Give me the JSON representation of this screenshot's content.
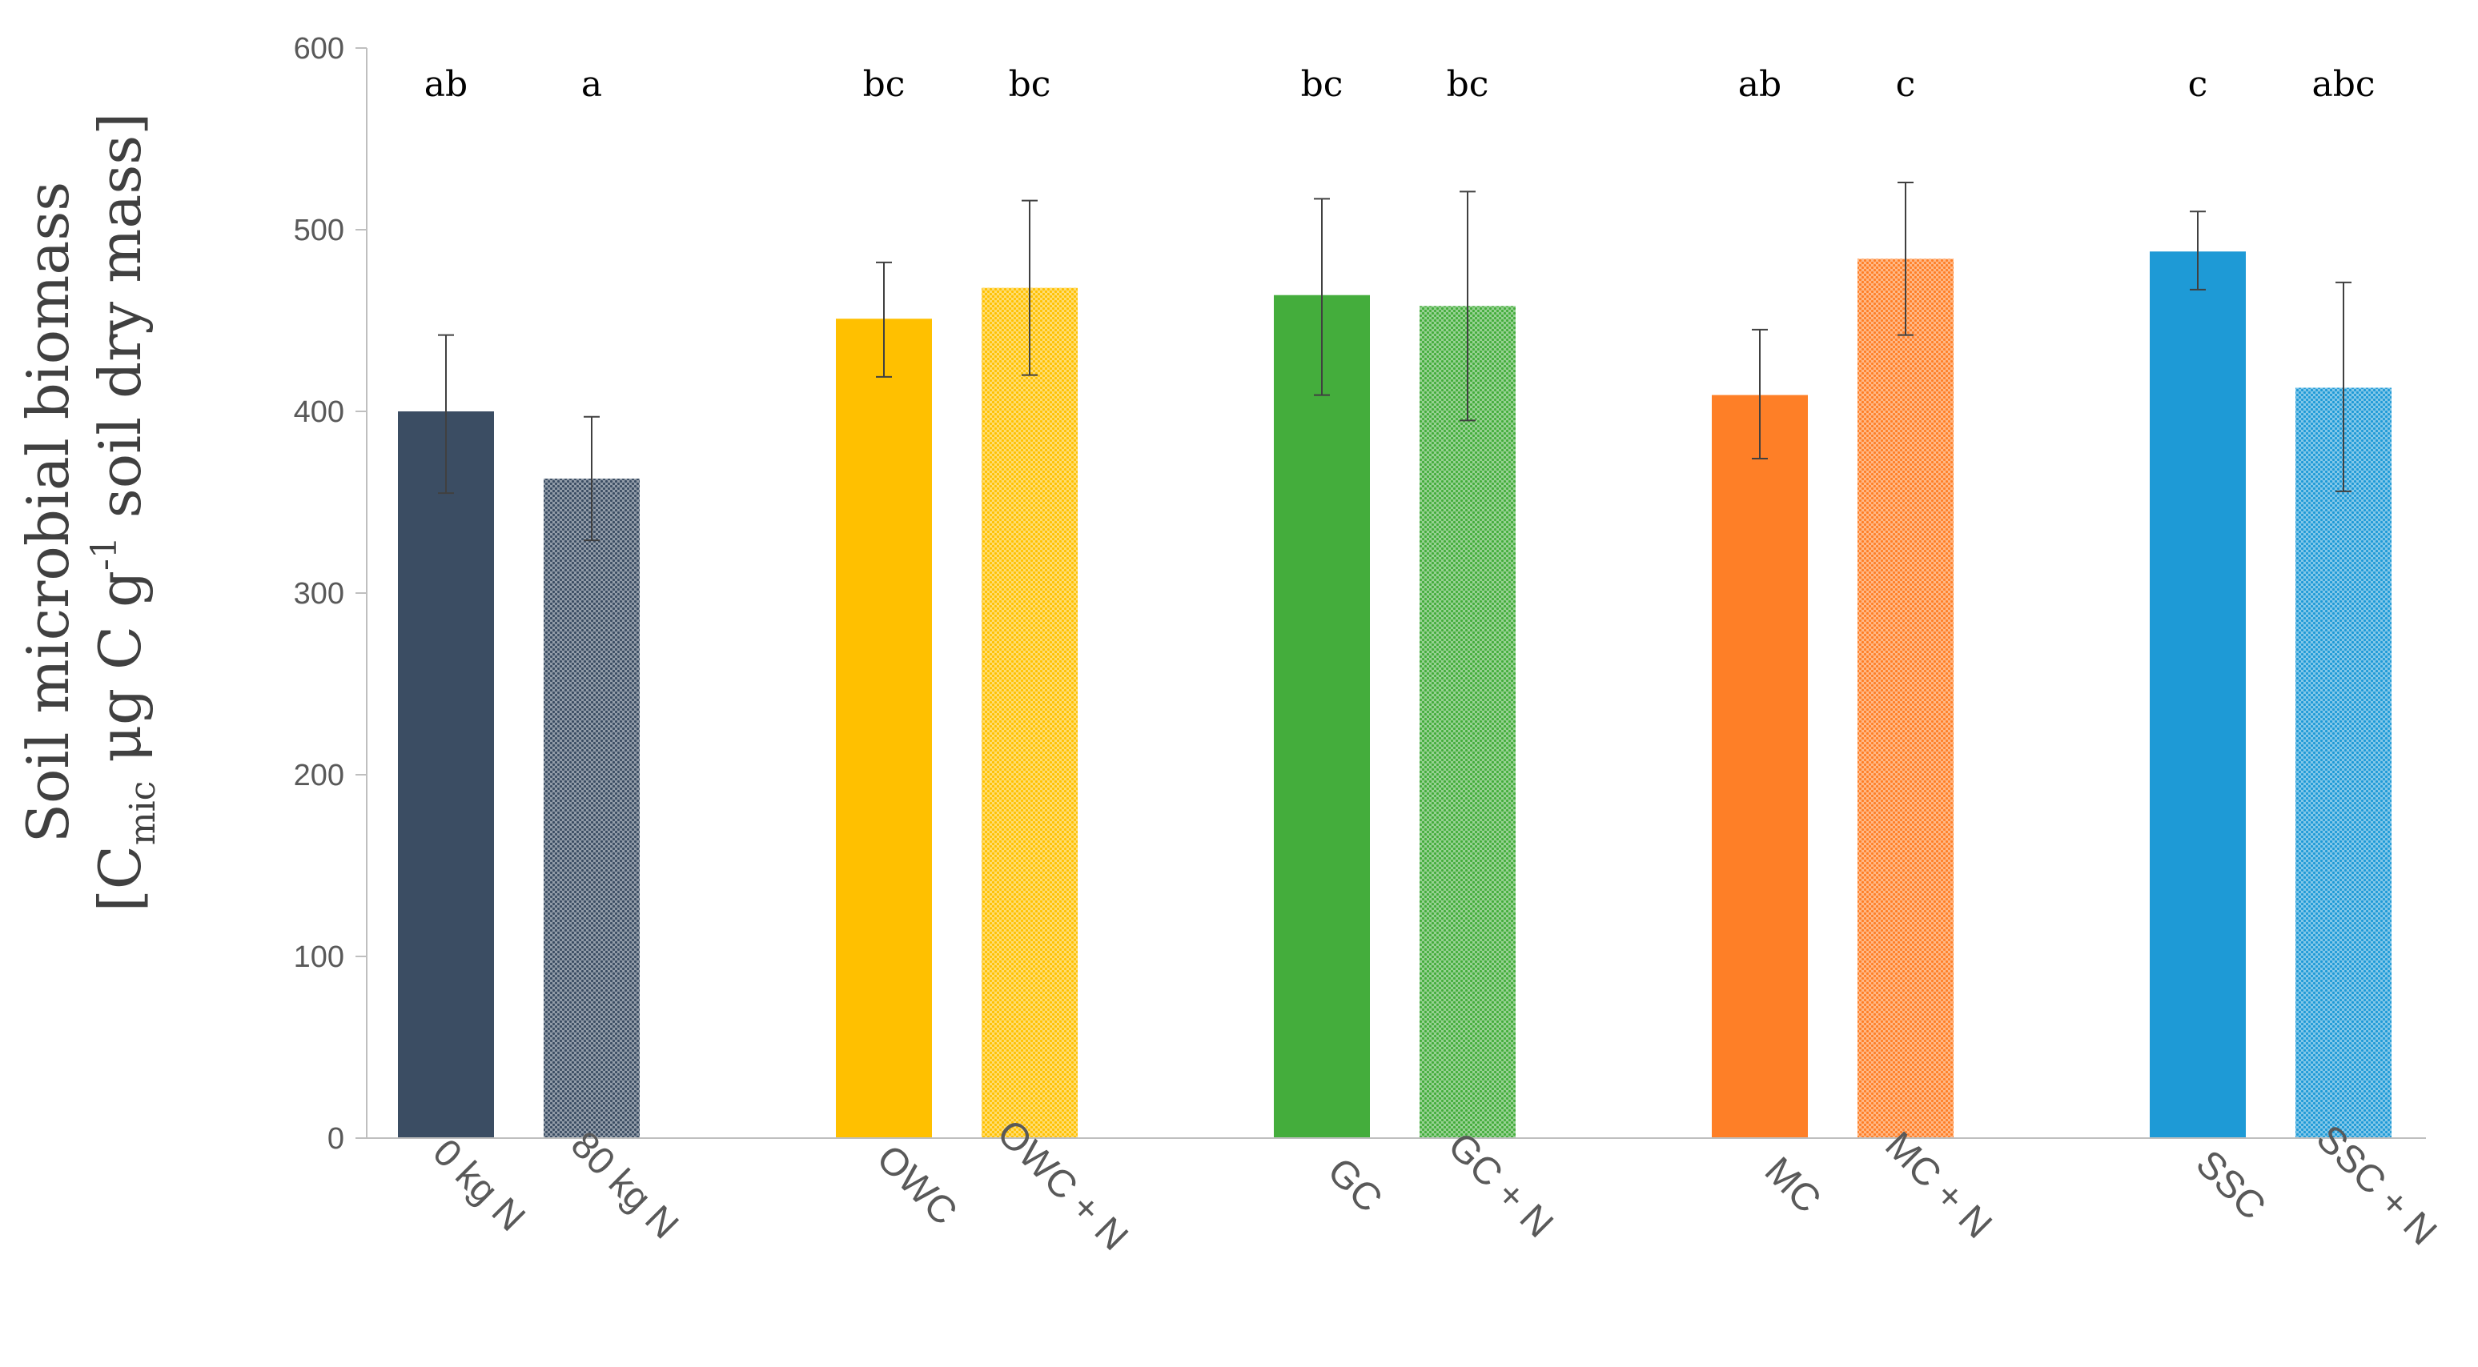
{
  "chart_data": {
    "type": "bar",
    "title": "",
    "ylabel": {
      "line1": "Soil microbial biomass",
      "line2_prefix": "[C",
      "line2_subscript": "mic",
      "line2_middle": " μg C g",
      "line2_superscript": "-1",
      "line2_suffix": " soil dry mass]"
    },
    "xlabel": "",
    "ylim": [
      0,
      600
    ],
    "yticks": [
      0,
      100,
      200,
      300,
      400,
      500,
      600
    ],
    "groups": [
      {
        "color": "#3b4d63",
        "bars": [
          {
            "category": "0 kg N",
            "value": 400,
            "error_low": 355,
            "error_high": 442,
            "letter": "ab",
            "pattern": "solid"
          },
          {
            "category": "80 kg N",
            "value": 363,
            "error_low": 329,
            "error_high": 397,
            "letter": "a",
            "pattern": "dotted"
          }
        ]
      },
      {
        "color": "#ffc000",
        "bars": [
          {
            "category": "OWC",
            "value": 451,
            "error_low": 419,
            "error_high": 482,
            "letter": "bc",
            "pattern": "solid"
          },
          {
            "category": "OWC + N",
            "value": 468,
            "error_low": 420,
            "error_high": 516,
            "letter": "bc",
            "pattern": "dotted"
          }
        ]
      },
      {
        "color": "#44ad3c",
        "bars": [
          {
            "category": "GC",
            "value": 464,
            "error_low": 409,
            "error_high": 517,
            "letter": "bc",
            "pattern": "solid"
          },
          {
            "category": "GC + N",
            "value": 458,
            "error_low": 395,
            "error_high": 521,
            "letter": "bc",
            "pattern": "dotted"
          }
        ]
      },
      {
        "color": "#fe7f27",
        "bars": [
          {
            "category": "MC",
            "value": 409,
            "error_low": 374,
            "error_high": 445,
            "letter": "ab",
            "pattern": "solid"
          },
          {
            "category": "MC + N",
            "value": 484,
            "error_low": 442,
            "error_high": 526,
            "letter": "c",
            "pattern": "dotted"
          }
        ]
      },
      {
        "color": "#1e9ad6",
        "bars": [
          {
            "category": "SSC",
            "value": 488,
            "error_low": 467,
            "error_high": 510,
            "letter": "c",
            "pattern": "solid"
          },
          {
            "category": "SSC + N",
            "value": 413,
            "error_low": 356,
            "error_high": 471,
            "letter": "abc",
            "pattern": "dotted"
          }
        ]
      }
    ]
  }
}
